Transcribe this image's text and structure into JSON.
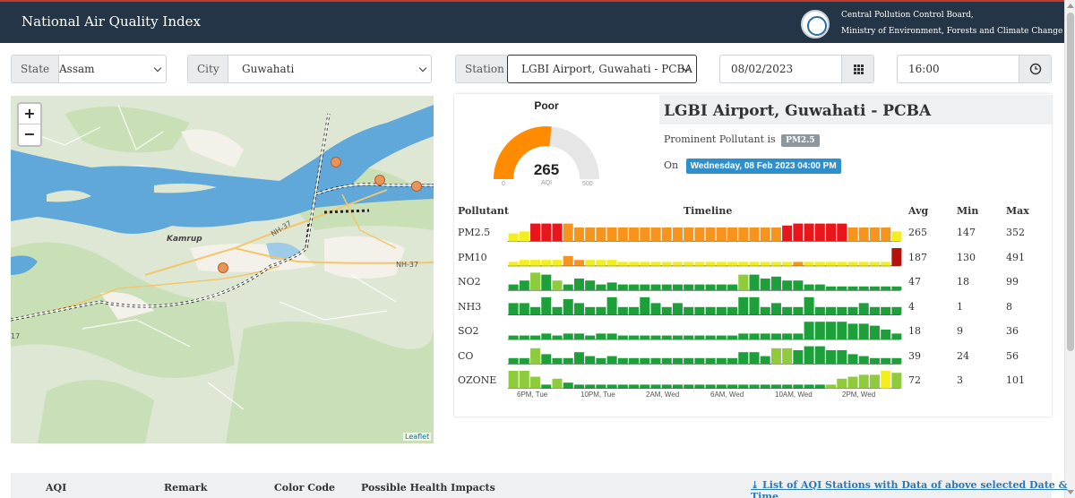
{
  "header": {
    "title": "National Air Quality Index",
    "org_line1": "Central Pollution Control Board,",
    "org_line2": "Ministry of Environment, Forests and Climate Change"
  },
  "filters": {
    "state_label": "State",
    "state_value": "Assam",
    "city_label": "City",
    "city_value": "Guwahati",
    "station_label": "Station",
    "station_value": "LGBI Airport, Guwahati - PCBA",
    "date_value": "08/02/2023",
    "time_value": "16:00"
  },
  "map": {
    "region_label": "Kamrup",
    "road_label_1": "NH-37",
    "road_label_2": "NH-37",
    "road_label_3": "17",
    "zoom_in": "+",
    "zoom_out": "−",
    "attribution": "Leaflet"
  },
  "aqi": {
    "category": "Poor",
    "value": 265,
    "unit": "AQI",
    "min": 0,
    "max": 500,
    "fill_color": "#ff8c00"
  },
  "station": {
    "name": "LGBI Airport, Guwahati - PCBA",
    "prominent_label": "Prominent Pollutant is",
    "prominent_pollutant": "PM2.5",
    "on_label": "On",
    "datetime": "Wednesday, 08 Feb 2023 04:00 PM"
  },
  "table": {
    "headers": {
      "pollutant": "Pollutant",
      "timeline": "Timeline",
      "avg": "Avg",
      "min": "Min",
      "max": "Max"
    },
    "rows": [
      {
        "name": "PM2.5",
        "avg": "265",
        "min": "147",
        "max": "352"
      },
      {
        "name": "PM10",
        "avg": "187",
        "min": "130",
        "max": "491"
      },
      {
        "name": "NO2",
        "avg": "47",
        "min": "18",
        "max": "99"
      },
      {
        "name": "NH3",
        "avg": "4",
        "min": "1",
        "max": "8"
      },
      {
        "name": "SO2",
        "avg": "18",
        "min": "9",
        "max": "36"
      },
      {
        "name": "CO",
        "avg": "39",
        "min": "24",
        "max": "56"
      },
      {
        "name": "OZONE",
        "avg": "72",
        "min": "3",
        "max": "101"
      }
    ],
    "time_ticks": [
      "6PM, Tue",
      "10PM, Tue",
      "2AM, Wed",
      "6AM, Wed",
      "10AM, Wed",
      "2PM, Wed"
    ]
  },
  "timeline_data": {
    "colors": {
      "G": "#1da03a",
      "L": "#8fcc3c",
      "Y": "#f3ef1f",
      "O": "#f7941d",
      "R": "#e8151b",
      "D": "#b5120c"
    },
    "rows": [
      {
        "heights": [
          0.4,
          0.5,
          0.9,
          0.9,
          0.9,
          0.9,
          0.7,
          0.7,
          0.7,
          0.7,
          0.7,
          0.7,
          0.7,
          0.7,
          0.7,
          0.7,
          0.7,
          0.7,
          0.7,
          0.7,
          0.7,
          0.7,
          0.7,
          0.7,
          0.7,
          0.8,
          0.9,
          0.9,
          0.9,
          0.9,
          0.9,
          0.7,
          0.7,
          0.7,
          0.7,
          0.5
        ],
        "colors": "YYRRROOOOOOOOOOOOOOOOOOOORRRRRROOOOY"
      },
      {
        "heights": [
          0.2,
          0.3,
          0.3,
          0.3,
          0.3,
          0.5,
          0.3,
          0.3,
          0.3,
          0.3,
          0.2,
          0.2,
          0.2,
          0.2,
          0.2,
          0.2,
          0.2,
          0.2,
          0.2,
          0.2,
          0.2,
          0.2,
          0.2,
          0.2,
          0.2,
          0.2,
          0.2,
          0.2,
          0.2,
          0.2,
          0.2,
          0.2,
          0.2,
          0.2,
          0.2,
          0.9
        ],
        "colors": "YYYYYOOYYYYYYYYYYYYYYYYYYYOYYYYYYYYD"
      },
      {
        "heights": [
          0.3,
          0.5,
          0.9,
          0.8,
          0.5,
          0.3,
          0.6,
          0.5,
          0.3,
          0.4,
          0.3,
          0.3,
          0.3,
          0.3,
          0.3,
          0.3,
          0.3,
          0.3,
          0.3,
          0.3,
          0.3,
          0.8,
          0.8,
          0.6,
          0.7,
          0.5,
          0.5,
          0.3,
          0.3,
          0.2,
          0.2,
          0.2,
          0.2,
          0.2,
          0.2,
          0.2
        ],
        "colors": "GGLGLGGGGGGGGGGGGGGGGLGGGGGGGGGGGGGG"
      },
      {
        "heights": [
          0.6,
          0.6,
          0.4,
          0.9,
          0.4,
          0.8,
          0.6,
          0.4,
          0.4,
          0.9,
          0.4,
          0.4,
          0.9,
          0.6,
          0.4,
          0.6,
          0.4,
          0.4,
          0.4,
          0.4,
          0.4,
          0.9,
          0.9,
          0.4,
          0.6,
          0.4,
          0.4,
          0.9,
          0.4,
          0.4,
          0.4,
          0.4,
          0.6,
          0.4,
          0.4,
          0.4
        ],
        "colors": "GGGGGGGGGGGGGGGGGGGGGGGGGGGGGGGGGGGG"
      },
      {
        "heights": [
          0.2,
          0.2,
          0.2,
          0.3,
          0.2,
          0.3,
          0.3,
          0.2,
          0.3,
          0.3,
          0.2,
          0.2,
          0.2,
          0.2,
          0.2,
          0.2,
          0.2,
          0.2,
          0.2,
          0.2,
          0.2,
          0.3,
          0.3,
          0.3,
          0.3,
          0.3,
          0.3,
          0.9,
          0.9,
          0.9,
          0.9,
          0.8,
          0.8,
          0.7,
          0.5,
          0.3
        ],
        "colors": "GGGGGGGGGGGGGGGGGGGGGGGGGGGGGGGGGGGG"
      },
      {
        "heights": [
          0.3,
          0.3,
          0.8,
          0.5,
          0.3,
          0.3,
          0.6,
          0.4,
          0.3,
          0.4,
          0.3,
          0.3,
          0.3,
          0.3,
          0.3,
          0.3,
          0.3,
          0.3,
          0.3,
          0.3,
          0.3,
          0.6,
          0.6,
          0.4,
          0.8,
          0.8,
          0.7,
          0.9,
          0.9,
          0.7,
          0.7,
          0.5,
          0.4,
          0.3,
          0.3,
          0.3
        ],
        "colors": "GGLGGGGGGGGGGGGGGGGGGGGGLLGGGGGGGGGG"
      },
      {
        "heights": [
          0.9,
          0.9,
          0.6,
          0.2,
          0.5,
          0.3,
          0.2,
          0.2,
          0.2,
          0.2,
          0.2,
          0.2,
          0.2,
          0.2,
          0.2,
          0.2,
          0.2,
          0.2,
          0.2,
          0.2,
          0.2,
          0.2,
          0.2,
          0.2,
          0.2,
          0.2,
          0.2,
          0.2,
          0.2,
          0.2,
          0.5,
          0.6,
          0.7,
          0.7,
          0.9,
          0.8
        ],
        "colors": "LLLGLGGGGGGGGGGGGGGGGGGGGGGGGLLLLLYL"
      }
    ]
  },
  "footer": {
    "aqi": "AQI",
    "remark": "Remark",
    "color_code": "Color Code",
    "health": "Possible Health Impacts",
    "link": "⤓ List of AQI Stations with Data of above selected Date & Time"
  }
}
